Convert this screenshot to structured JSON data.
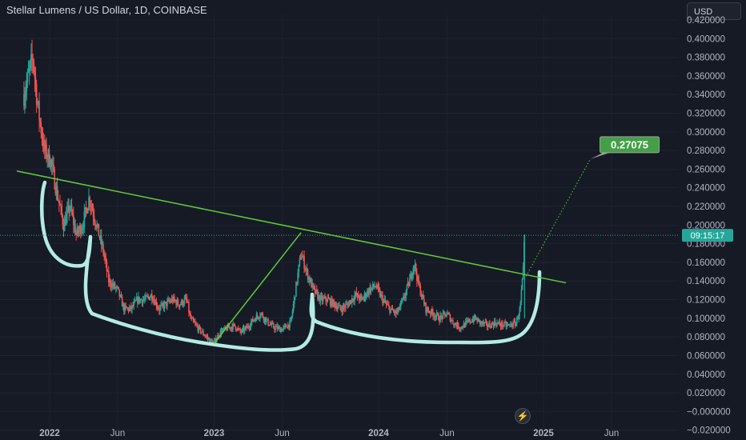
{
  "header": {
    "title": "Stellar Lumens / US Dollar, 1D, COINBASE",
    "currency": "USD"
  },
  "colors": {
    "background": "#161a25",
    "grid": "#1f2330",
    "up": "#26a69a",
    "down": "#ef5350",
    "trendline": "#5fcc3a",
    "cup_outline": "#b2ebe3",
    "target_box": "#43a047",
    "countdown_box": "#26a69a"
  },
  "icons": {
    "lightning": "lightning-icon"
  },
  "chart_data": {
    "type": "candlestick",
    "title": "Stellar Lumens / US Dollar, 1D, COINBASE",
    "xlabel": "",
    "ylabel": "",
    "currency": "USD",
    "y_ticks": [
      "0.420000",
      "0.400000",
      "0.380000",
      "0.360000",
      "0.340000",
      "0.320000",
      "0.300000",
      "0.280000",
      "0.260000",
      "0.240000",
      "0.220000",
      "0.200000",
      "0.180000",
      "0.160000",
      "0.140000",
      "0.120000",
      "0.100000",
      "0.080000",
      "0.060000",
      "0.040000",
      "0.020000",
      "−0.000000",
      "−0.020000"
    ],
    "y_tick_values": [
      0.42,
      0.4,
      0.38,
      0.36,
      0.34,
      0.32,
      0.3,
      0.28,
      0.26,
      0.24,
      0.22,
      0.2,
      0.18,
      0.16,
      0.14,
      0.12,
      0.1,
      0.08,
      0.06,
      0.04,
      0.02,
      0.0,
      -0.02
    ],
    "x_ticks": [
      "2022",
      "Jun",
      "2023",
      "Jun",
      "2024",
      "Jun",
      "2025",
      "Jun"
    ],
    "x_tick_dates": [
      "2022-01-01",
      "2022-06-01",
      "2023-01-01",
      "2023-06-01",
      "2024-01-01",
      "2024-06-01",
      "2025-01-01",
      "2025-06-01"
    ],
    "ylim": [
      -0.022,
      0.426
    ],
    "grid": true,
    "price_path": [
      [
        "2021-11-05",
        0.34
      ],
      [
        "2021-11-25",
        0.38
      ],
      [
        "2021-12-05",
        0.33
      ],
      [
        "2021-12-20",
        0.28
      ],
      [
        "2022-01-03",
        0.27
      ],
      [
        "2022-01-15",
        0.24
      ],
      [
        "2022-02-01",
        0.2
      ],
      [
        "2022-02-15",
        0.22
      ],
      [
        "2022-03-01",
        0.19
      ],
      [
        "2022-03-15",
        0.2
      ],
      [
        "2022-03-30",
        0.23
      ],
      [
        "2022-04-15",
        0.2
      ],
      [
        "2022-05-01",
        0.17
      ],
      [
        "2022-05-12",
        0.14
      ],
      [
        "2022-06-01",
        0.13
      ],
      [
        "2022-06-15",
        0.11
      ],
      [
        "2022-07-01",
        0.11
      ],
      [
        "2022-07-15",
        0.12
      ],
      [
        "2022-08-01",
        0.12
      ],
      [
        "2022-08-15",
        0.125
      ],
      [
        "2022-09-01",
        0.11
      ],
      [
        "2022-09-15",
        0.115
      ],
      [
        "2022-10-01",
        0.12
      ],
      [
        "2022-10-15",
        0.115
      ],
      [
        "2022-11-01",
        0.12
      ],
      [
        "2022-11-09",
        0.1
      ],
      [
        "2022-11-25",
        0.09
      ],
      [
        "2022-12-15",
        0.08
      ],
      [
        "2022-12-30",
        0.073
      ],
      [
        "2023-01-15",
        0.085
      ],
      [
        "2023-02-01",
        0.09
      ],
      [
        "2023-02-15",
        0.092
      ],
      [
        "2023-03-01",
        0.085
      ],
      [
        "2023-03-15",
        0.09
      ],
      [
        "2023-04-01",
        0.1
      ],
      [
        "2023-04-15",
        0.105
      ],
      [
        "2023-05-01",
        0.095
      ],
      [
        "2023-05-15",
        0.09
      ],
      [
        "2023-06-01",
        0.088
      ],
      [
        "2023-06-20",
        0.095
      ],
      [
        "2023-07-13",
        0.17
      ],
      [
        "2023-07-25",
        0.15
      ],
      [
        "2023-08-10",
        0.13
      ],
      [
        "2023-08-25",
        0.12
      ],
      [
        "2023-09-10",
        0.12
      ],
      [
        "2023-09-25",
        0.115
      ],
      [
        "2023-10-10",
        0.11
      ],
      [
        "2023-10-25",
        0.115
      ],
      [
        "2023-11-10",
        0.125
      ],
      [
        "2023-11-25",
        0.12
      ],
      [
        "2023-12-10",
        0.13
      ],
      [
        "2023-12-25",
        0.135
      ],
      [
        "2024-01-10",
        0.12
      ],
      [
        "2024-01-25",
        0.11
      ],
      [
        "2024-02-10",
        0.105
      ],
      [
        "2024-02-25",
        0.12
      ],
      [
        "2024-03-10",
        0.14
      ],
      [
        "2024-03-20",
        0.16
      ],
      [
        "2024-03-30",
        0.135
      ],
      [
        "2024-04-15",
        0.11
      ],
      [
        "2024-05-01",
        0.105
      ],
      [
        "2024-05-15",
        0.1
      ],
      [
        "2024-06-01",
        0.105
      ],
      [
        "2024-06-15",
        0.095
      ],
      [
        "2024-07-01",
        0.09
      ],
      [
        "2024-07-15",
        0.095
      ],
      [
        "2024-08-01",
        0.1
      ],
      [
        "2024-08-15",
        0.095
      ],
      [
        "2024-09-01",
        0.092
      ],
      [
        "2024-09-15",
        0.095
      ],
      [
        "2024-10-01",
        0.093
      ],
      [
        "2024-10-15",
        0.092
      ],
      [
        "2024-11-01",
        0.095
      ],
      [
        "2024-11-10",
        0.11
      ],
      [
        "2024-11-17",
        0.15
      ],
      [
        "2024-11-20",
        0.189
      ]
    ],
    "current_price": 0.189,
    "countdown": "09:15:17",
    "price_target": "0.27075",
    "price_target_value": 0.27075,
    "annotations": {
      "trendline": [
        [
          "2021-10-20",
          0.258
        ],
        [
          "2025-02-20",
          0.138
        ]
      ],
      "rise_line": [
        [
          "2023-01-01",
          0.073
        ],
        [
          "2023-07-13",
          0.192
        ]
      ],
      "projection": [
        [
          "2024-11-23",
          0.145
        ],
        [
          "2025-04-15",
          0.27075
        ]
      ]
    }
  }
}
